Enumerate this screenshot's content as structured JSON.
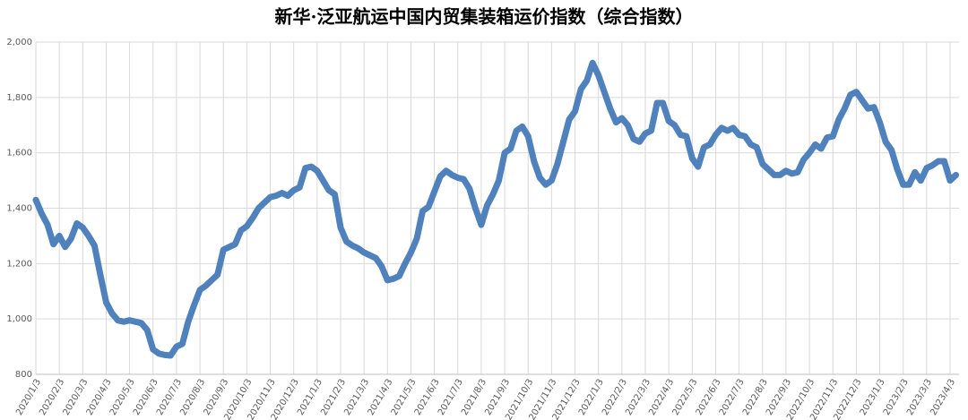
{
  "chart_data": {
    "type": "line",
    "title": "新华·泛亚航运中国内贸集装箱运价指数（综合指数）",
    "color": "#4f81bd",
    "grid": true,
    "ylim": [
      800,
      2000
    ],
    "yticks": [
      800,
      {
        "value": 1000,
        "label": "1,000"
      },
      {
        "value": 1200,
        "label": "1,200"
      },
      {
        "value": 1400,
        "label": "1,400"
      },
      {
        "value": 1600,
        "label": "1,600"
      },
      {
        "value": 1800,
        "label": "1,800"
      },
      {
        "value": 2000,
        "label": "2,000"
      }
    ],
    "categories": [
      "2020/1/3",
      null,
      null,
      null,
      "2020/2/3",
      null,
      null,
      null,
      "2020/3/3",
      null,
      null,
      null,
      "2020/4/3",
      null,
      null,
      null,
      "2020/5/3",
      null,
      null,
      null,
      "2020/6/3",
      null,
      null,
      null,
      "2020/7/3",
      null,
      null,
      null,
      "2020/8/3",
      null,
      null,
      null,
      "2020/9/3",
      null,
      null,
      null,
      "2020/10/3",
      null,
      null,
      null,
      "2020/11/3",
      null,
      null,
      null,
      "2020/12/3",
      null,
      null,
      null,
      "2021/1/3",
      null,
      null,
      null,
      "2021/2/3",
      null,
      null,
      null,
      "2021/3/3",
      null,
      null,
      null,
      "2021/4/3",
      null,
      null,
      null,
      "2021/5/3",
      null,
      null,
      null,
      "2021/6/3",
      null,
      null,
      null,
      "2021/7/3",
      null,
      null,
      null,
      "2021/8/3",
      null,
      null,
      null,
      "2021/9/3",
      null,
      null,
      null,
      "2021/10/3",
      null,
      null,
      null,
      "2021/11/3",
      null,
      null,
      null,
      "2021/12/3",
      null,
      null,
      null,
      "2022/1/3",
      null,
      null,
      null,
      "2022/2/3",
      null,
      null,
      null,
      "2022/3/3",
      null,
      null,
      null,
      "2022/4/3",
      null,
      null,
      null,
      "2022/5/3",
      null,
      null,
      null,
      "2022/6/3",
      null,
      null,
      null,
      "2022/7/3",
      null,
      null,
      null,
      "2022/8/3",
      null,
      null,
      null,
      "2022/9/3",
      null,
      null,
      null,
      "2022/10/3",
      null,
      null,
      null,
      "2022/11/3",
      null,
      null,
      null,
      "2022/12/3",
      null,
      null,
      null,
      "2023/1/3",
      null,
      null,
      null,
      "2023/2/3",
      null,
      null,
      null,
      "2023/3/3",
      null,
      null,
      null,
      "2023/4/3",
      null
    ],
    "values": [
      1430,
      1380,
      1340,
      1270,
      1300,
      1260,
      1290,
      1345,
      1330,
      1300,
      1265,
      1160,
      1060,
      1020,
      995,
      990,
      995,
      990,
      985,
      960,
      890,
      875,
      870,
      868,
      900,
      910,
      990,
      1050,
      1105,
      1120,
      1140,
      1160,
      1250,
      1260,
      1270,
      1320,
      1335,
      1365,
      1400,
      1420,
      1440,
      1445,
      1455,
      1445,
      1465,
      1475,
      1545,
      1550,
      1535,
      1500,
      1465,
      1450,
      1330,
      1280,
      1265,
      1255,
      1240,
      1230,
      1220,
      1190,
      1140,
      1145,
      1155,
      1200,
      1240,
      1290,
      1390,
      1405,
      1460,
      1515,
      1535,
      1520,
      1510,
      1505,
      1470,
      1400,
      1340,
      1410,
      1450,
      1500,
      1600,
      1615,
      1680,
      1695,
      1660,
      1570,
      1510,
      1485,
      1500,
      1560,
      1640,
      1720,
      1750,
      1830,
      1860,
      1925,
      1880,
      1820,
      1760,
      1710,
      1725,
      1700,
      1650,
      1640,
      1670,
      1680,
      1780,
      1780,
      1715,
      1700,
      1665,
      1660,
      1580,
      1550,
      1620,
      1630,
      1665,
      1690,
      1680,
      1690,
      1665,
      1660,
      1630,
      1620,
      1560,
      1540,
      1520,
      1520,
      1535,
      1525,
      1530,
      1575,
      1600,
      1630,
      1615,
      1655,
      1660,
      1720,
      1760,
      1810,
      1820,
      1790,
      1760,
      1765,
      1710,
      1640,
      1610,
      1540,
      1485,
      1485,
      1530,
      1500,
      1545,
      1555,
      1570,
      1570,
      1500,
      1520
    ]
  }
}
